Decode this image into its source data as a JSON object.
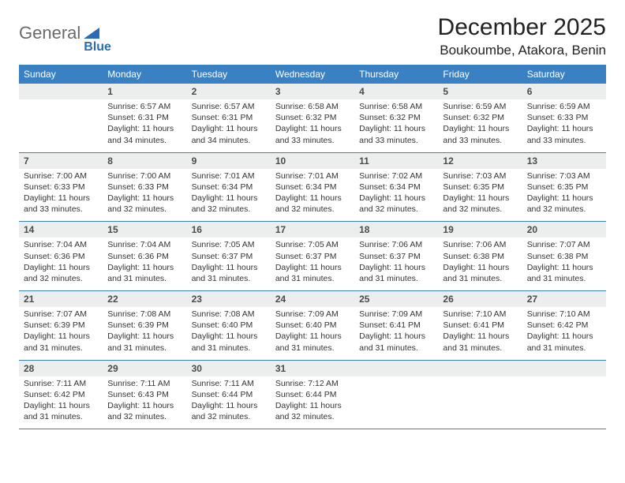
{
  "logo": {
    "text1": "General",
    "text2": "Blue",
    "shape_color": "#2a6bb3"
  },
  "title": "December 2025",
  "location": "Boukoumbe, Atakora, Benin",
  "colors": {
    "header_bg": "#3a81c4",
    "header_text": "#ffffff",
    "daynum_bg": "#eceeee",
    "border": "#3a81c4",
    "body_text": "#333333"
  },
  "weekdays": [
    "Sunday",
    "Monday",
    "Tuesday",
    "Wednesday",
    "Thursday",
    "Friday",
    "Saturday"
  ],
  "labels": {
    "sunrise": "Sunrise:",
    "sunset": "Sunset:",
    "daylight": "Daylight:"
  },
  "weeks": [
    [
      null,
      {
        "n": "1",
        "sr": "6:57 AM",
        "ss": "6:31 PM",
        "dl": "11 hours and 34 minutes."
      },
      {
        "n": "2",
        "sr": "6:57 AM",
        "ss": "6:31 PM",
        "dl": "11 hours and 34 minutes."
      },
      {
        "n": "3",
        "sr": "6:58 AM",
        "ss": "6:32 PM",
        "dl": "11 hours and 33 minutes."
      },
      {
        "n": "4",
        "sr": "6:58 AM",
        "ss": "6:32 PM",
        "dl": "11 hours and 33 minutes."
      },
      {
        "n": "5",
        "sr": "6:59 AM",
        "ss": "6:32 PM",
        "dl": "11 hours and 33 minutes."
      },
      {
        "n": "6",
        "sr": "6:59 AM",
        "ss": "6:33 PM",
        "dl": "11 hours and 33 minutes."
      }
    ],
    [
      {
        "n": "7",
        "sr": "7:00 AM",
        "ss": "6:33 PM",
        "dl": "11 hours and 33 minutes."
      },
      {
        "n": "8",
        "sr": "7:00 AM",
        "ss": "6:33 PM",
        "dl": "11 hours and 32 minutes."
      },
      {
        "n": "9",
        "sr": "7:01 AM",
        "ss": "6:34 PM",
        "dl": "11 hours and 32 minutes."
      },
      {
        "n": "10",
        "sr": "7:01 AM",
        "ss": "6:34 PM",
        "dl": "11 hours and 32 minutes."
      },
      {
        "n": "11",
        "sr": "7:02 AM",
        "ss": "6:34 PM",
        "dl": "11 hours and 32 minutes."
      },
      {
        "n": "12",
        "sr": "7:03 AM",
        "ss": "6:35 PM",
        "dl": "11 hours and 32 minutes."
      },
      {
        "n": "13",
        "sr": "7:03 AM",
        "ss": "6:35 PM",
        "dl": "11 hours and 32 minutes."
      }
    ],
    [
      {
        "n": "14",
        "sr": "7:04 AM",
        "ss": "6:36 PM",
        "dl": "11 hours and 32 minutes."
      },
      {
        "n": "15",
        "sr": "7:04 AM",
        "ss": "6:36 PM",
        "dl": "11 hours and 31 minutes."
      },
      {
        "n": "16",
        "sr": "7:05 AM",
        "ss": "6:37 PM",
        "dl": "11 hours and 31 minutes."
      },
      {
        "n": "17",
        "sr": "7:05 AM",
        "ss": "6:37 PM",
        "dl": "11 hours and 31 minutes."
      },
      {
        "n": "18",
        "sr": "7:06 AM",
        "ss": "6:37 PM",
        "dl": "11 hours and 31 minutes."
      },
      {
        "n": "19",
        "sr": "7:06 AM",
        "ss": "6:38 PM",
        "dl": "11 hours and 31 minutes."
      },
      {
        "n": "20",
        "sr": "7:07 AM",
        "ss": "6:38 PM",
        "dl": "11 hours and 31 minutes."
      }
    ],
    [
      {
        "n": "21",
        "sr": "7:07 AM",
        "ss": "6:39 PM",
        "dl": "11 hours and 31 minutes."
      },
      {
        "n": "22",
        "sr": "7:08 AM",
        "ss": "6:39 PM",
        "dl": "11 hours and 31 minutes."
      },
      {
        "n": "23",
        "sr": "7:08 AM",
        "ss": "6:40 PM",
        "dl": "11 hours and 31 minutes."
      },
      {
        "n": "24",
        "sr": "7:09 AM",
        "ss": "6:40 PM",
        "dl": "11 hours and 31 minutes."
      },
      {
        "n": "25",
        "sr": "7:09 AM",
        "ss": "6:41 PM",
        "dl": "11 hours and 31 minutes."
      },
      {
        "n": "26",
        "sr": "7:10 AM",
        "ss": "6:41 PM",
        "dl": "11 hours and 31 minutes."
      },
      {
        "n": "27",
        "sr": "7:10 AM",
        "ss": "6:42 PM",
        "dl": "11 hours and 31 minutes."
      }
    ],
    [
      {
        "n": "28",
        "sr": "7:11 AM",
        "ss": "6:42 PM",
        "dl": "11 hours and 31 minutes."
      },
      {
        "n": "29",
        "sr": "7:11 AM",
        "ss": "6:43 PM",
        "dl": "11 hours and 32 minutes."
      },
      {
        "n": "30",
        "sr": "7:11 AM",
        "ss": "6:44 PM",
        "dl": "11 hours and 32 minutes."
      },
      {
        "n": "31",
        "sr": "7:12 AM",
        "ss": "6:44 PM",
        "dl": "11 hours and 32 minutes."
      },
      null,
      null,
      null
    ]
  ]
}
